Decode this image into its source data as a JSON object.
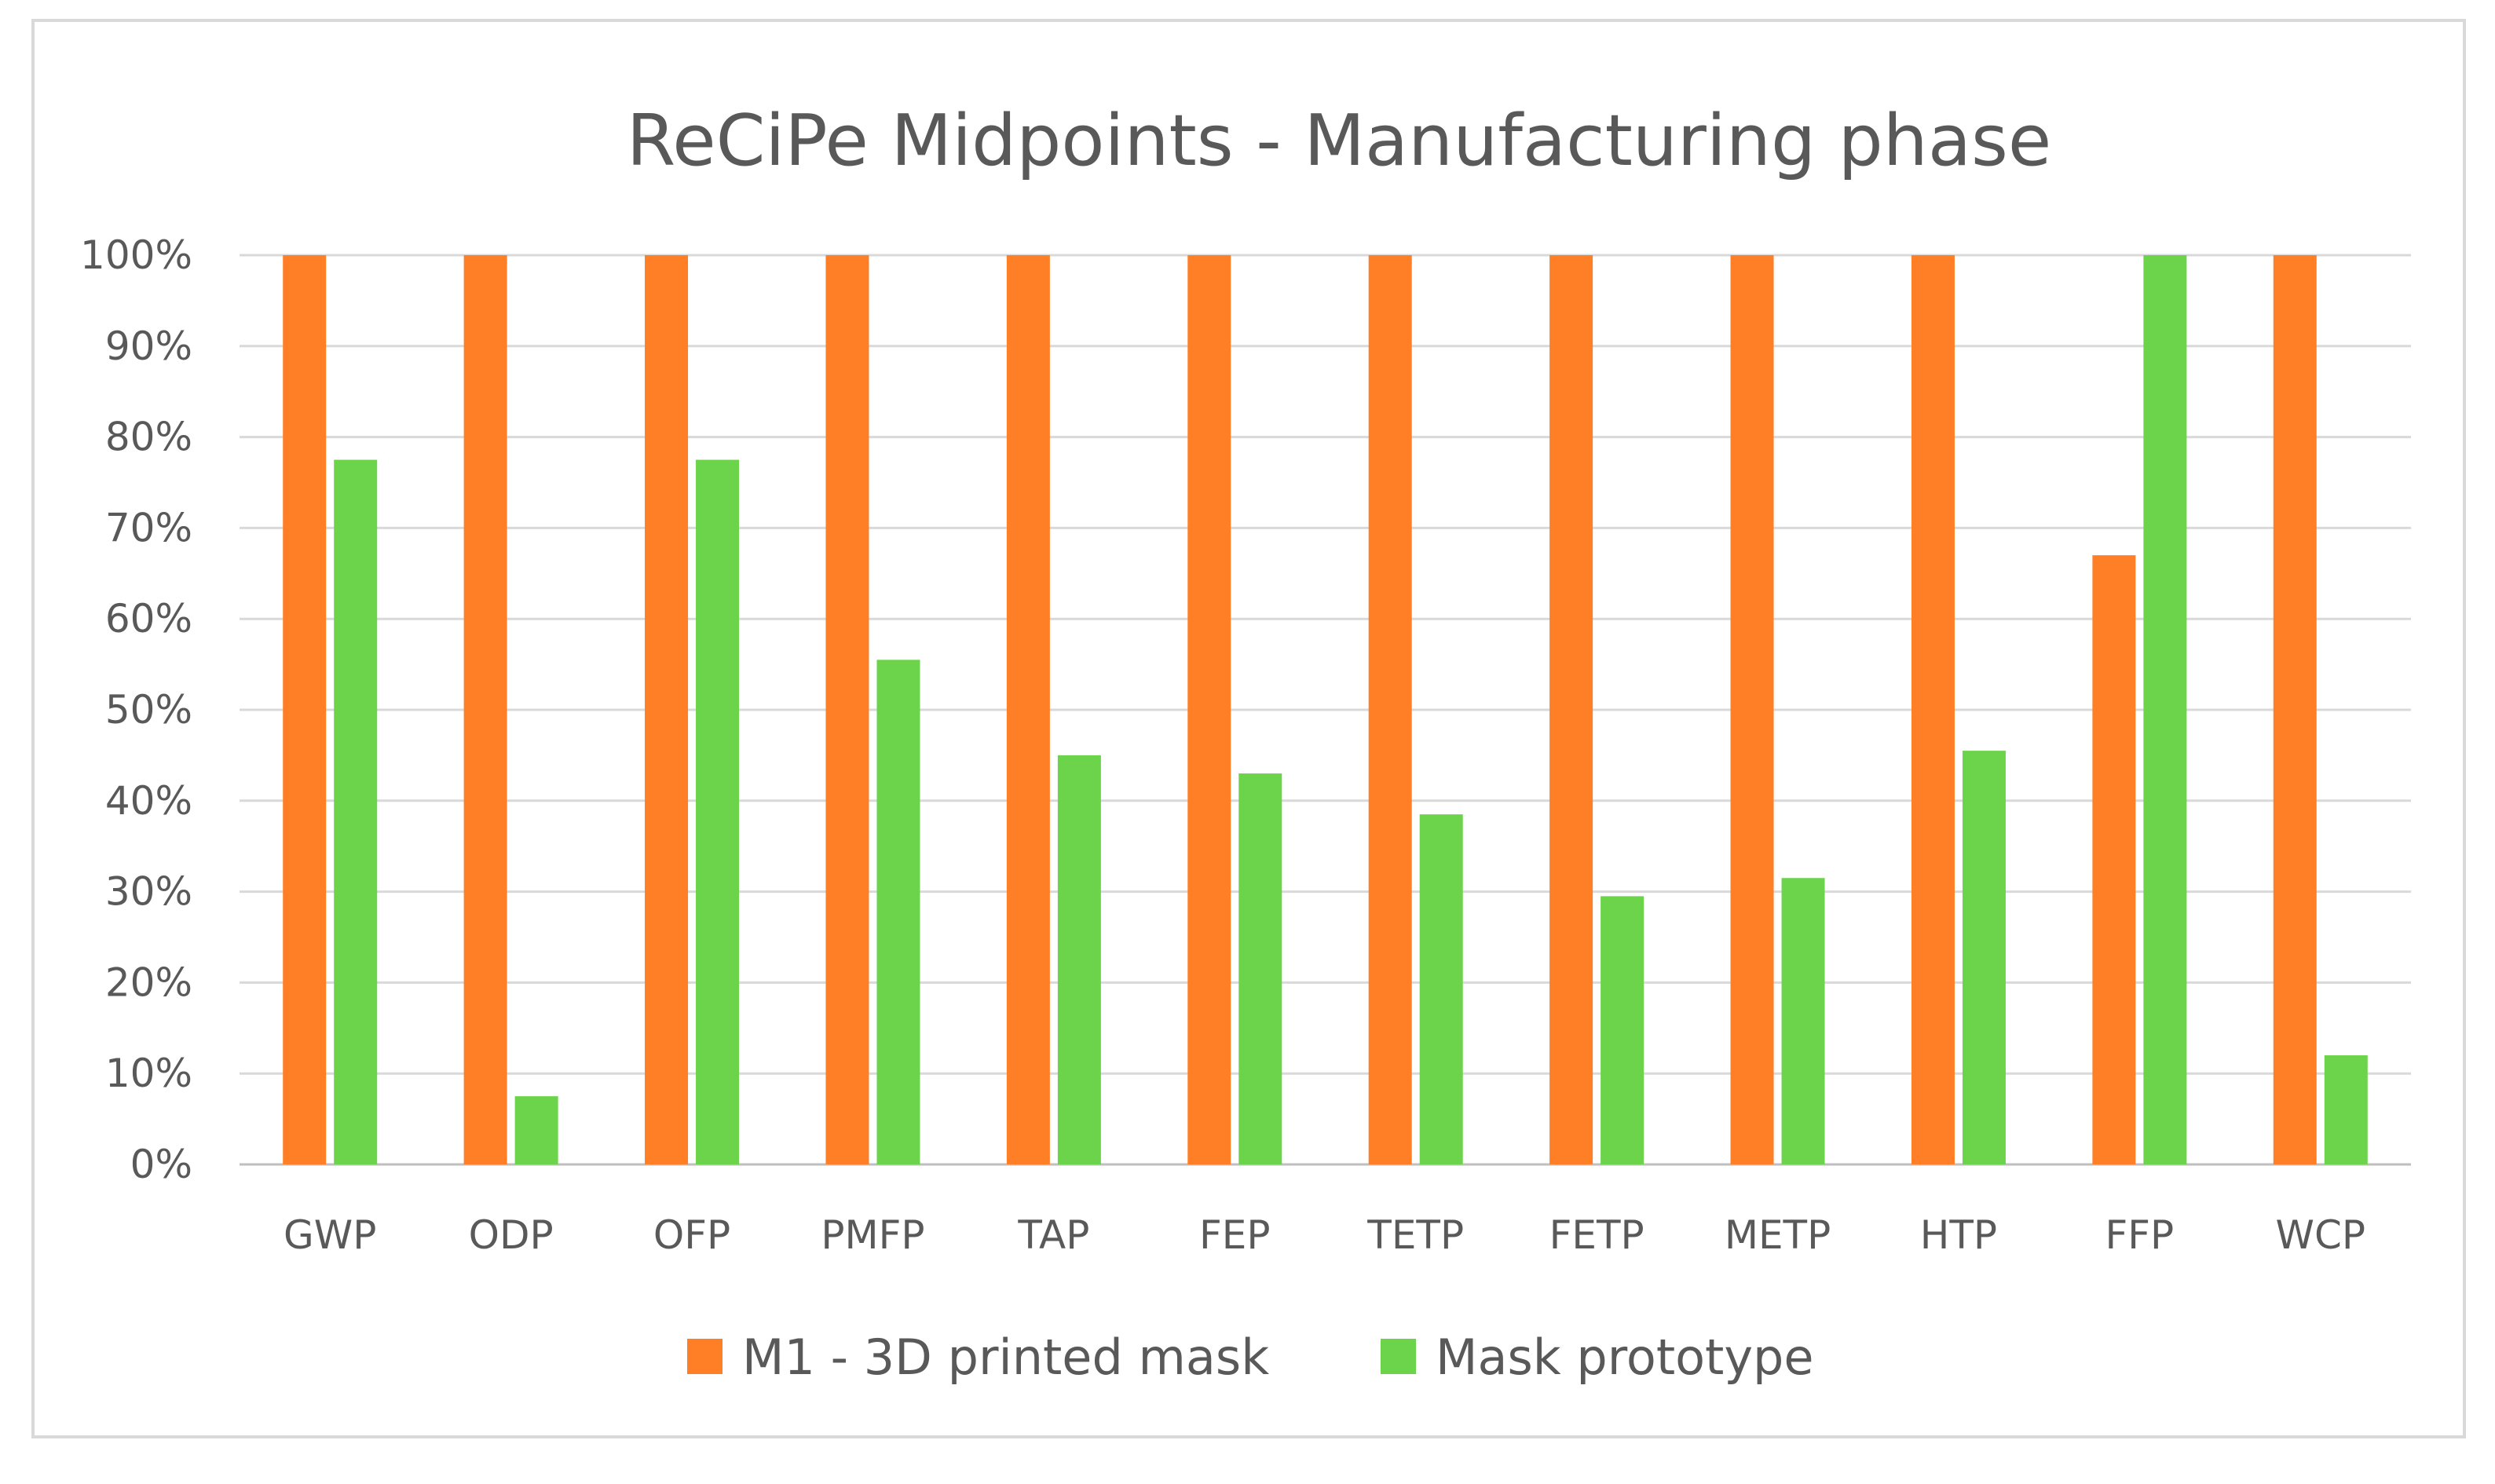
{
  "chart_data": {
    "type": "bar",
    "title": "ReCiPe Midpoints - Manufacturing phase",
    "categories": [
      "GWP",
      "ODP",
      "OFP",
      "PMFP",
      "TAP",
      "FEP",
      "TETP",
      "FETP",
      "METP",
      "HTP",
      "FFP",
      "WCP"
    ],
    "series": [
      {
        "name": "M1 - 3D printed mask",
        "color": "#ff7f27",
        "values": [
          100,
          100,
          100,
          100,
          100,
          100,
          100,
          100,
          100,
          100,
          67,
          100
        ]
      },
      {
        "name": "Mask prototype",
        "color": "#6cd44a",
        "values": [
          77.5,
          7.5,
          77.5,
          55.5,
          45,
          43,
          38.5,
          29.5,
          31.5,
          45.5,
          100,
          12
        ]
      }
    ],
    "ylim": [
      0,
      100
    ],
    "y_ticks": [
      "0%",
      "10%",
      "20%",
      "30%",
      "40%",
      "50%",
      "60%",
      "70%",
      "80%",
      "90%",
      "100%"
    ],
    "grid": true,
    "legend_position": "bottom"
  }
}
